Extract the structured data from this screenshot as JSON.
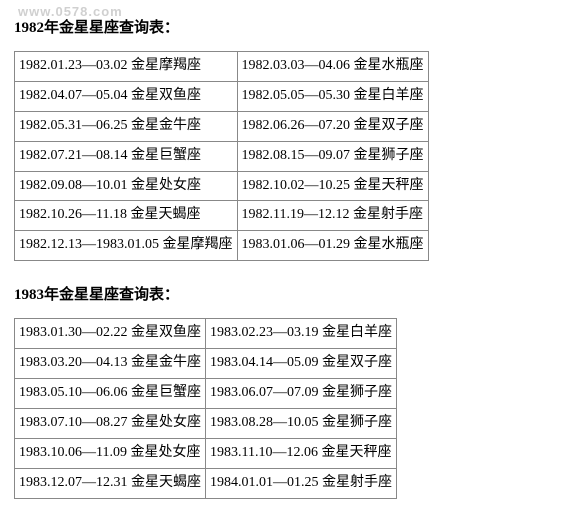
{
  "watermark": "www.0578.com",
  "section1": {
    "title": "1982年金星星座查询表：",
    "rows": [
      [
        "1982.01.23—03.02 金星摩羯座",
        "1982.03.03—04.06 金星水瓶座"
      ],
      [
        "1982.04.07—05.04 金星双鱼座",
        "1982.05.05—05.30 金星白羊座"
      ],
      [
        "1982.05.31—06.25 金星金牛座",
        "1982.06.26—07.20 金星双子座"
      ],
      [
        "1982.07.21—08.14 金星巨蟹座",
        "1982.08.15—09.07 金星狮子座"
      ],
      [
        "1982.09.08—10.01 金星处女座",
        "1982.10.02—10.25 金星天秤座"
      ],
      [
        "1982.10.26—11.18 金星天蝎座",
        "1982.11.19—12.12 金星射手座"
      ],
      [
        "1982.12.13—1983.01.05 金星摩羯座",
        "1983.01.06—01.29 金星水瓶座"
      ]
    ]
  },
  "section2": {
    "title": "1983年金星星座查询表：",
    "rows": [
      [
        "1983.01.30—02.22 金星双鱼座",
        "1983.02.23—03.19 金星白羊座"
      ],
      [
        "1983.03.20—04.13 金星金牛座",
        "1983.04.14—05.09 金星双子座"
      ],
      [
        "1983.05.10—06.06 金星巨蟹座",
        "1983.06.07—07.09 金星狮子座"
      ],
      [
        "1983.07.10—08.27 金星处女座",
        "1983.08.28—10.05 金星狮子座"
      ],
      [
        "1983.10.06—11.09 金星处女座",
        "1983.11.10—12.06 金星天秤座"
      ],
      [
        "1983.12.07—12.31 金星天蝎座",
        "1984.01.01—01.25 金星射手座"
      ]
    ]
  },
  "style": {
    "background_color": "#ffffff",
    "text_color": "#000000",
    "border_color": "#888888",
    "title_fontsize": 15,
    "cell_fontsize": 14,
    "font_family": "SimSun"
  }
}
